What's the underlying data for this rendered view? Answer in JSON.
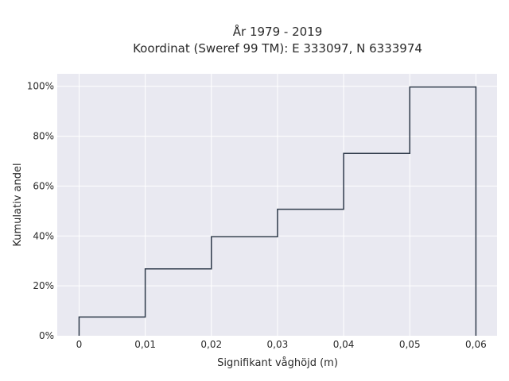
{
  "chart_data": {
    "type": "line",
    "subtype": "cumulative-step",
    "title_lines": [
      "År 1979 - 2019",
      "Koordinat (Sweref 99 TM): E 333097, N 6333974"
    ],
    "xlabel": "Signifikant våghöjd (m)",
    "ylabel": "Kumulativ andel",
    "x_ticks": [
      {
        "value": 0,
        "label": "0"
      },
      {
        "value": 0.01,
        "label": "0,01"
      },
      {
        "value": 0.02,
        "label": "0,02"
      },
      {
        "value": 0.03,
        "label": "0,03"
      },
      {
        "value": 0.04,
        "label": "0,04"
      },
      {
        "value": 0.05,
        "label": "0,05"
      },
      {
        "value": 0.06,
        "label": "0,06"
      }
    ],
    "y_ticks": [
      {
        "value": 0,
        "label": "0%"
      },
      {
        "value": 0.2,
        "label": "20%"
      },
      {
        "value": 0.4,
        "label": "40%"
      },
      {
        "value": 0.6,
        "label": "60%"
      },
      {
        "value": 0.8,
        "label": "80%"
      },
      {
        "value": 1.0,
        "label": "100%"
      }
    ],
    "xlim": [
      -0.0033,
      0.0632
    ],
    "ylim": [
      0,
      1.05
    ],
    "step_points": [
      {
        "x": 0,
        "y": 0
      },
      {
        "x": 0,
        "y": 0.075
      },
      {
        "x": 0.01,
        "y": 0.075
      },
      {
        "x": 0.01,
        "y": 0.268
      },
      {
        "x": 0.02,
        "y": 0.268
      },
      {
        "x": 0.02,
        "y": 0.397
      },
      {
        "x": 0.03,
        "y": 0.397
      },
      {
        "x": 0.03,
        "y": 0.507
      },
      {
        "x": 0.04,
        "y": 0.507
      },
      {
        "x": 0.04,
        "y": 0.731
      },
      {
        "x": 0.05,
        "y": 0.731
      },
      {
        "x": 0.05,
        "y": 0.997
      },
      {
        "x": 0.06,
        "y": 0.997
      },
      {
        "x": 0.06,
        "y": 1.0
      },
      {
        "x": 0.06,
        "y": 0
      }
    ],
    "grid": true,
    "colors": {
      "plot_background": "#e9e9f1",
      "grid": "#ffffff",
      "line": "#2f3b4b"
    }
  }
}
